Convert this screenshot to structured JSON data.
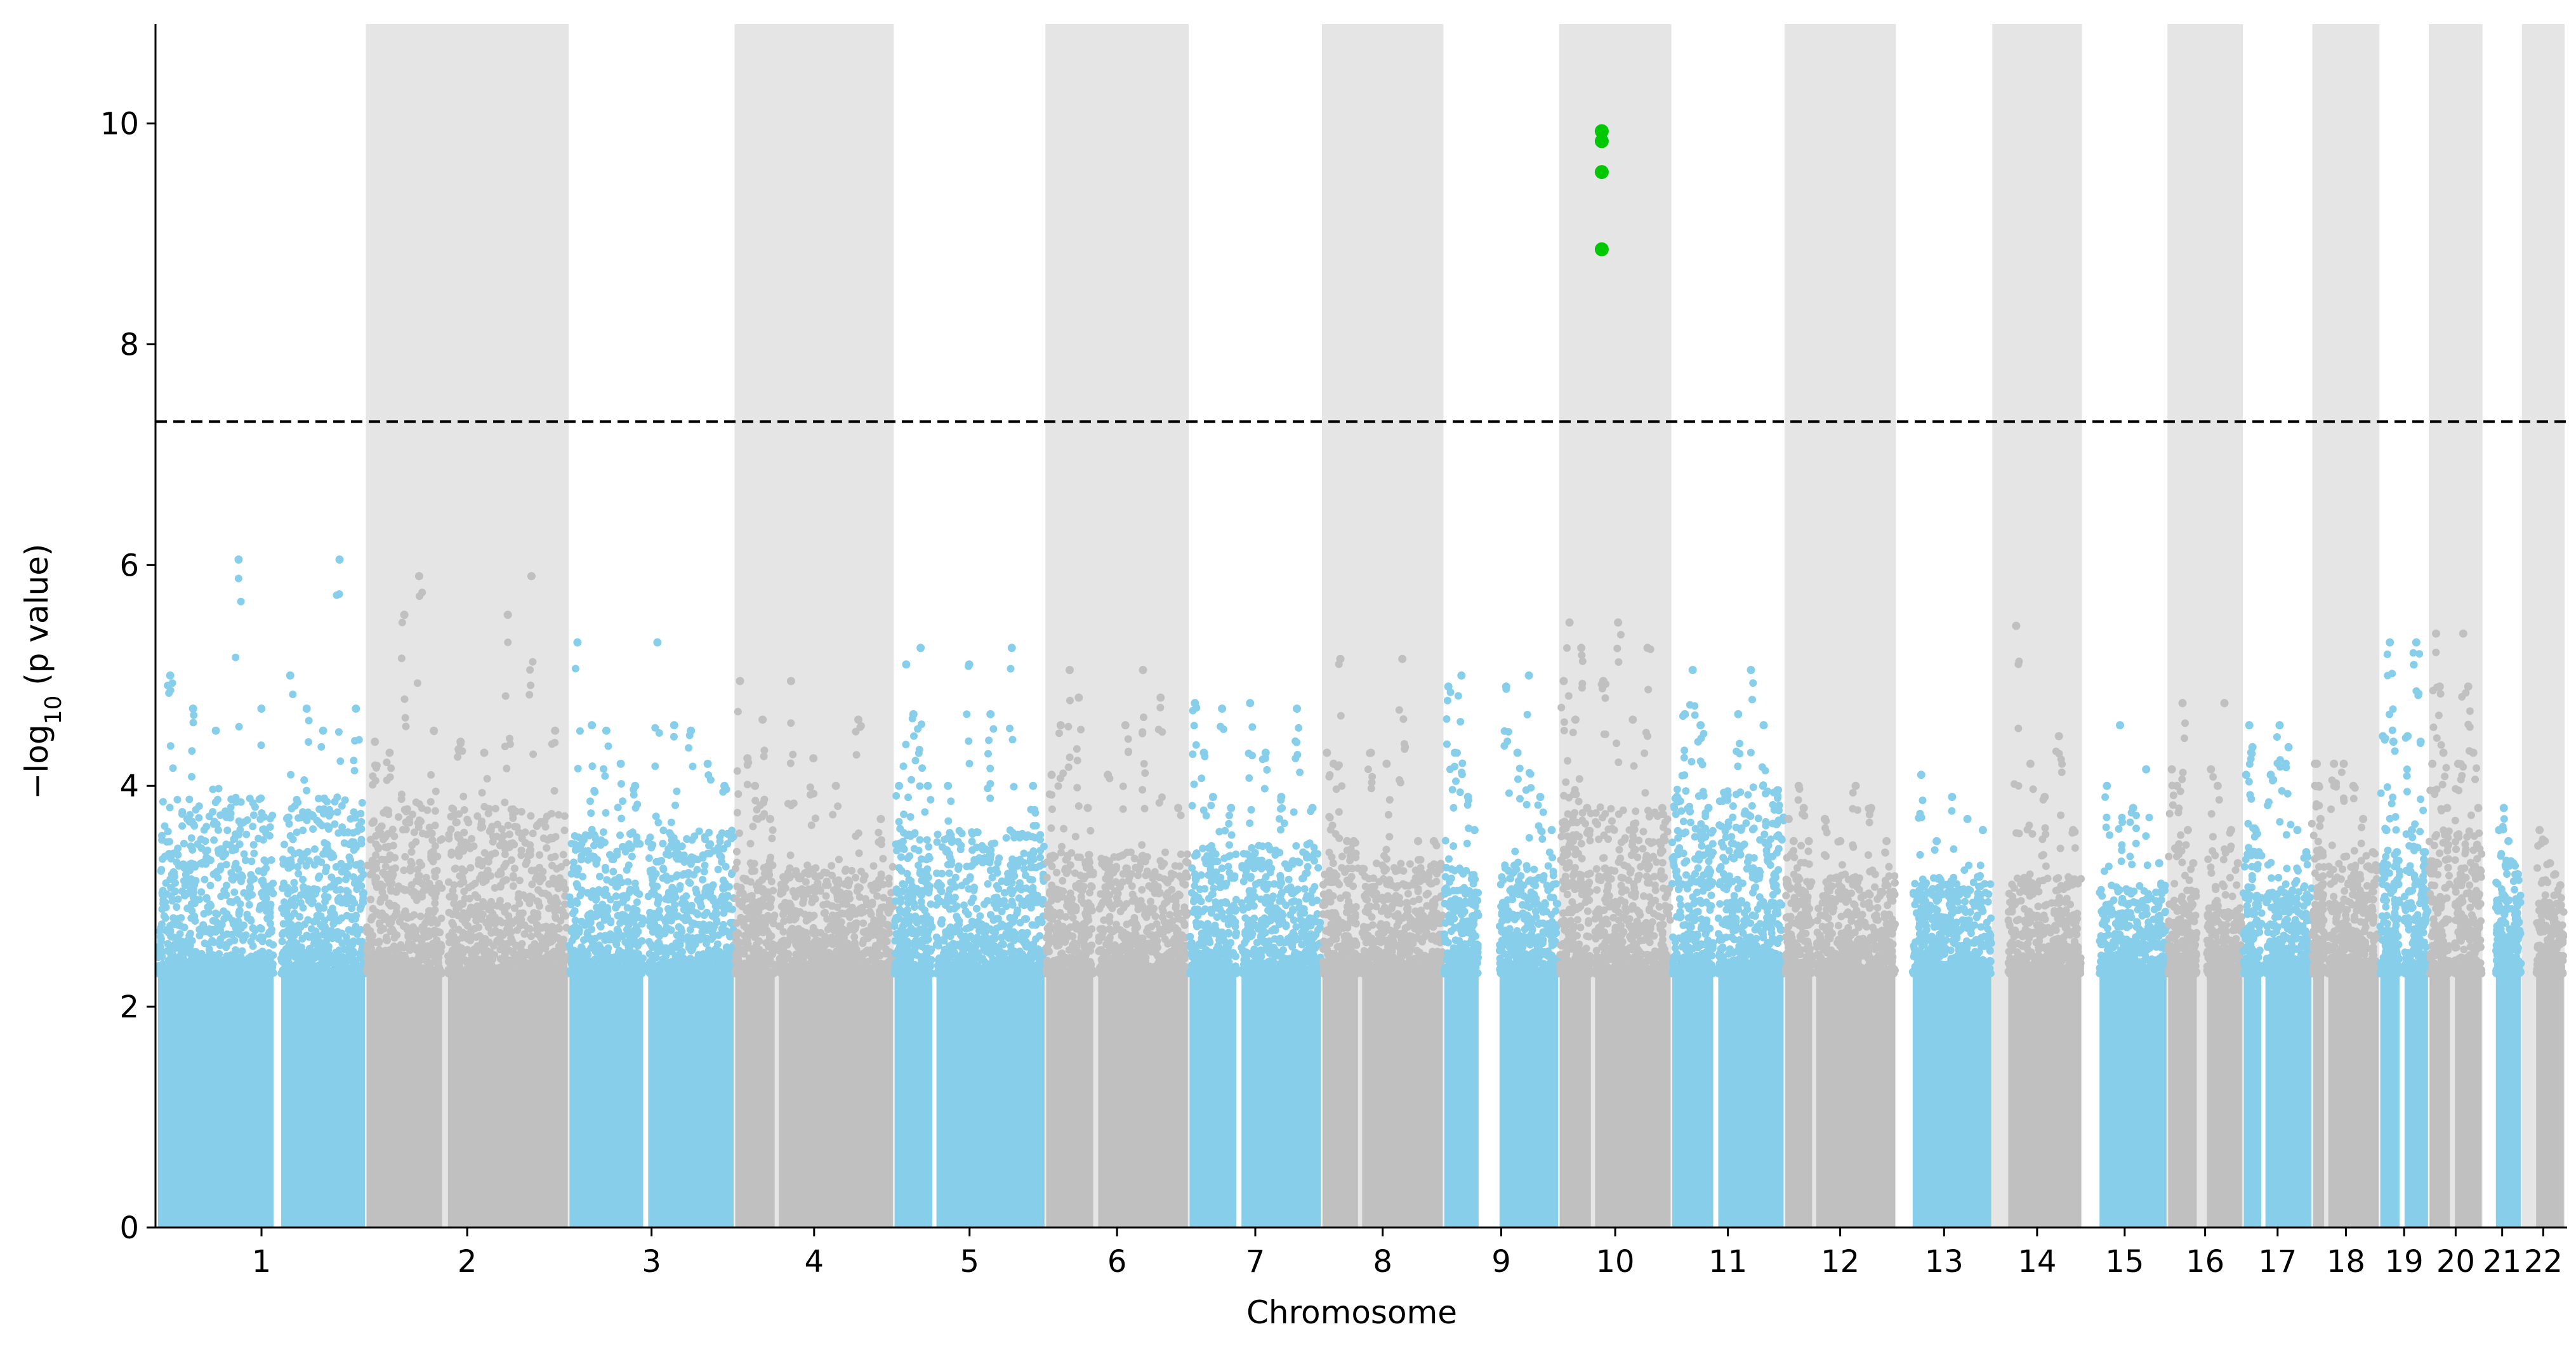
{
  "chart_data": {
    "type": "scatter",
    "subtype": "manhattan",
    "title": "",
    "xlabel": "Chromosome",
    "ylabel_main": "−log",
    "ylabel_sub": "10",
    "ylabel_rest": " (p value)",
    "ylim": [
      0,
      10.9
    ],
    "yticks": [
      0,
      2,
      4,
      6,
      8,
      10
    ],
    "threshold": 7.3,
    "chromosomes": [
      {
        "label": "1",
        "start": 0,
        "end": 249,
        "gaps": [
          [
            140,
            147
          ]
        ]
      },
      {
        "label": "2",
        "start": 249,
        "end": 491,
        "gaps": [
          [
            92,
            97
          ]
        ]
      },
      {
        "label": "3",
        "start": 491,
        "end": 689,
        "gaps": [
          [
            90,
            94
          ]
        ]
      },
      {
        "label": "4",
        "start": 689,
        "end": 879,
        "gaps": [
          [
            49,
            52
          ]
        ]
      },
      {
        "label": "5",
        "start": 879,
        "end": 1060,
        "gaps": [
          [
            47,
            50
          ]
        ]
      },
      {
        "label": "6",
        "start": 1060,
        "end": 1231,
        "gaps": [
          [
            58,
            62
          ]
        ]
      },
      {
        "label": "7",
        "start": 1231,
        "end": 1390,
        "gaps": [
          [
            58,
            62
          ]
        ]
      },
      {
        "label": "8",
        "start": 1390,
        "end": 1535,
        "gaps": [
          [
            44,
            47
          ]
        ]
      },
      {
        "label": "9",
        "start": 1535,
        "end": 1673,
        "gaps": [
          [
            43,
            66
          ]
        ]
      },
      {
        "label": "10",
        "start": 1673,
        "end": 1807,
        "gaps": [
          [
            39,
            42
          ]
        ]
      },
      {
        "label": "11",
        "start": 1807,
        "end": 1942,
        "gaps": [
          [
            51,
            55
          ]
        ]
      },
      {
        "label": "12",
        "start": 1942,
        "end": 2075,
        "gaps": [
          [
            34,
            37
          ]
        ]
      },
      {
        "label": "13",
        "start": 2075,
        "end": 2190,
        "gaps": [
          [
            0,
            19
          ]
        ]
      },
      {
        "label": "14",
        "start": 2190,
        "end": 2297,
        "gaps": [
          [
            0,
            18
          ]
        ]
      },
      {
        "label": "15",
        "start": 2297,
        "end": 2399,
        "gaps": [
          [
            0,
            20
          ]
        ]
      },
      {
        "label": "16",
        "start": 2399,
        "end": 2489,
        "gaps": [
          [
            36,
            46
          ]
        ]
      },
      {
        "label": "17",
        "start": 2489,
        "end": 2572,
        "gaps": [
          [
            23,
            26
          ]
        ]
      },
      {
        "label": "18",
        "start": 2572,
        "end": 2652,
        "gaps": [
          [
            15,
            18
          ]
        ]
      },
      {
        "label": "19",
        "start": 2652,
        "end": 2711,
        "gaps": [
          [
            25,
            29
          ]
        ]
      },
      {
        "label": "20",
        "start": 2711,
        "end": 2775,
        "gaps": [
          [
            26,
            30
          ]
        ]
      },
      {
        "label": "21",
        "start": 2775,
        "end": 2822,
        "gaps": [
          [
            0,
            15
          ]
        ]
      },
      {
        "label": "22",
        "start": 2822,
        "end": 2873,
        "gaps": [
          [
            0,
            16
          ]
        ]
      }
    ],
    "chrom_peaks": [
      [
        5.0,
        4.7,
        4.5,
        6.05,
        4.7,
        3.9
      ],
      [
        4.4,
        4.3,
        5.55,
        5.9,
        4.5,
        3.8
      ],
      [
        5.3,
        4.55,
        4.5,
        4.2,
        4.0,
        3.6
      ],
      [
        4.95,
        4.25,
        4.0,
        4.6,
        3.7,
        3.3
      ],
      [
        4.0,
        5.1,
        4.65,
        5.25,
        4.0,
        3.6
      ],
      [
        4.1,
        4.55,
        5.05,
        4.8,
        3.8,
        3.4
      ],
      [
        4.75,
        4.3,
        3.9,
        4.7,
        3.8,
        3.5
      ],
      [
        4.3,
        4.2,
        5.15,
        3.5,
        3.5,
        3.3
      ],
      [
        4.9,
        4.3,
        5.0,
        3.9,
        3.6,
        3.3
      ],
      [
        4.95,
        5.48,
        4.6,
        5.25,
        3.8,
        3.8
      ],
      [
        3.9,
        4.65,
        5.05,
        4.55,
        3.8,
        4.0
      ],
      [
        3.7,
        3.5,
        4.0,
        3.8,
        3.5,
        3.2
      ],
      [
        4.1,
        3.5,
        3.9,
        3.7,
        3.6,
        3.2
      ],
      [
        5.45,
        4.2,
        3.9,
        4.45,
        3.6,
        3.2
      ],
      [
        4.0,
        4.55,
        3.8,
        4.15,
        3.3,
        3.1
      ],
      [
        4.15,
        4.0,
        4.75,
        3.6,
        3.3,
        3.0
      ],
      [
        4.1,
        4.55,
        4.35,
        3.6,
        3.4,
        3.1
      ],
      [
        4.2,
        4.2,
        4.0,
        3.7,
        3.4,
        3.3
      ],
      [
        4.45,
        3.6,
        5.3,
        4.4,
        3.4,
        3.3
      ],
      [
        4.2,
        5.38,
        4.9,
        4.3,
        3.8,
        3.6
      ],
      [
        3.6,
        3.8,
        3.5,
        3.3,
        3.2,
        3.0
      ],
      [
        3.6,
        3.5,
        3.3,
        3.2,
        3.1,
        3.0
      ]
    ],
    "significant_hits": {
      "chromosome": "10",
      "position": 51,
      "values": [
        9.93,
        9.84,
        9.56,
        8.86
      ]
    },
    "points_per_chromosome_scale": 6,
    "colors": {
      "odd_chromosome": "#87ceeb",
      "even_chromosome": "#c0c0c0",
      "shade_band": "#e5e5e5",
      "significant": "#00c800",
      "threshold_line": "#000000",
      "axis": "#000000",
      "background": "#ffffff"
    }
  }
}
